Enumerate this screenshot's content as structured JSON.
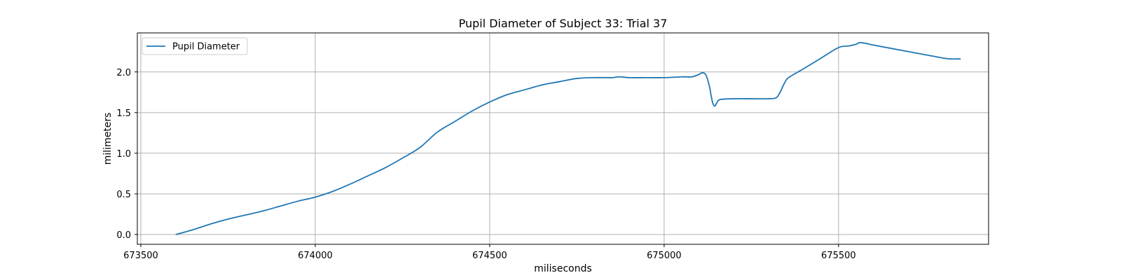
{
  "chart_data": {
    "type": "line",
    "title": "Pupil Diameter of Subject 33: Trial 37",
    "xlabel": "miliseconds",
    "ylabel": "milimeters",
    "xlim": [
      673490,
      675930
    ],
    "ylim": [
      -0.12,
      2.48
    ],
    "xticks": [
      673500,
      674000,
      674500,
      675000,
      675500
    ],
    "yticks": [
      0.0,
      0.5,
      1.0,
      1.5,
      2.0
    ],
    "xtick_labels": [
      "673500",
      "674000",
      "674500",
      "675000",
      "675500"
    ],
    "ytick_labels": [
      "0.0",
      "0.5",
      "1.0",
      "1.5",
      "2.0"
    ],
    "grid": true,
    "legend_position": "upper left",
    "series": [
      {
        "name": "Pupil Diameter",
        "color": "#1f77b4",
        "x": [
          673600,
          673650,
          673700,
          673750,
          673800,
          673850,
          673900,
          673950,
          674000,
          674050,
          674100,
          674150,
          674200,
          674250,
          674300,
          674350,
          674400,
          674450,
          674500,
          674550,
          674600,
          674650,
          674700,
          674750,
          674800,
          674850,
          674870,
          674900,
          674950,
          675000,
          675050,
          675080,
          675100,
          675110,
          675120,
          675130,
          675135,
          675140,
          675145,
          675150,
          675160,
          675200,
          675250,
          675300,
          675320,
          675330,
          675340,
          675350,
          675360,
          675400,
          675450,
          675500,
          675530,
          675550,
          675560,
          675580,
          675600,
          675650,
          675700,
          675750,
          675800,
          675820,
          675850
        ],
        "values": [
          0.0,
          0.06,
          0.13,
          0.19,
          0.24,
          0.29,
          0.35,
          0.41,
          0.46,
          0.53,
          0.62,
          0.72,
          0.82,
          0.94,
          1.07,
          1.26,
          1.39,
          1.52,
          1.63,
          1.72,
          1.78,
          1.84,
          1.88,
          1.92,
          1.93,
          1.93,
          1.94,
          1.93,
          1.93,
          1.93,
          1.94,
          1.94,
          1.97,
          1.99,
          1.96,
          1.82,
          1.7,
          1.61,
          1.58,
          1.61,
          1.66,
          1.67,
          1.67,
          1.67,
          1.68,
          1.73,
          1.82,
          1.9,
          1.94,
          2.04,
          2.17,
          2.3,
          2.32,
          2.34,
          2.36,
          2.35,
          2.33,
          2.29,
          2.25,
          2.21,
          2.17,
          2.16,
          2.16
        ]
      }
    ]
  }
}
